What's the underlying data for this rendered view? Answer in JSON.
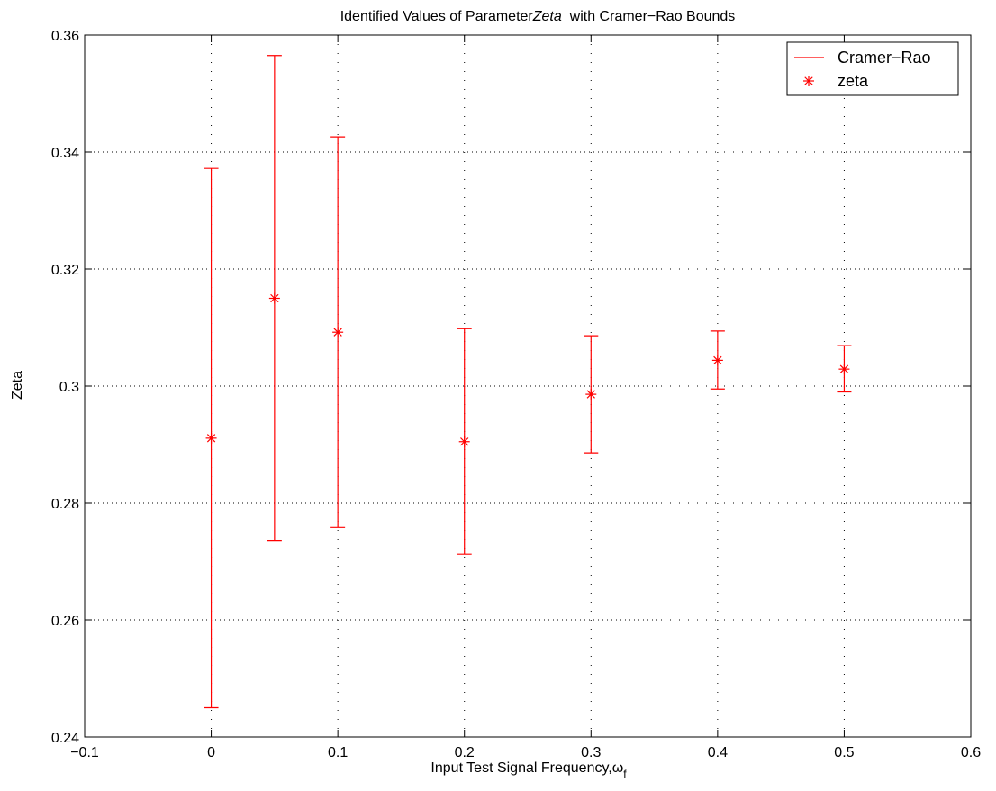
{
  "chart_data": {
    "type": "scatter",
    "title": {
      "prefix": "Identified Values of Parameter",
      "italic": "Zeta",
      "suffix": "  with Cramer−Rao Bounds"
    },
    "xlabel": {
      "text": "Input Test Signal Frequency,ω",
      "subscript": "f"
    },
    "ylabel": "Zeta",
    "xlim": [
      -0.1,
      0.6
    ],
    "ylim": [
      0.24,
      0.36
    ],
    "grid": true,
    "grid_style": "dotted",
    "legend_position": "top-right",
    "x_tick_labels": [
      "−0.1",
      "0",
      "0.1",
      "0.2",
      "0.3",
      "0.4",
      "0.5",
      "0.6"
    ],
    "x_ticks": [
      -0.1,
      0,
      0.1,
      0.2,
      0.3,
      0.4,
      0.5,
      0.6
    ],
    "y_tick_labels": [
      "0.24",
      "0.26",
      "0.28",
      "0.3",
      "0.32",
      "0.34",
      "0.36"
    ],
    "y_ticks": [
      0.24,
      0.26,
      0.28,
      0.3,
      0.32,
      0.34,
      0.36
    ],
    "series": [
      {
        "name": "Cramer−Rao",
        "kind": "errorbar",
        "color": "#ff0000",
        "x": [
          0,
          0.05,
          0.1,
          0.2,
          0.3,
          0.4,
          0.5
        ],
        "lower": [
          0.245,
          0.2736,
          0.2758,
          0.2712,
          0.2886,
          0.2995,
          0.299
        ],
        "upper": [
          0.3372,
          0.3565,
          0.3426,
          0.3098,
          0.3086,
          0.3094,
          0.3069
        ]
      },
      {
        "name": "zeta",
        "kind": "marker",
        "marker": "asterisk",
        "color": "#ff0000",
        "x": [
          0,
          0.05,
          0.1,
          0.2,
          0.3,
          0.4,
          0.5
        ],
        "y": [
          0.2911,
          0.315,
          0.3092,
          0.2905,
          0.2986,
          0.3044,
          0.3029
        ]
      }
    ]
  }
}
